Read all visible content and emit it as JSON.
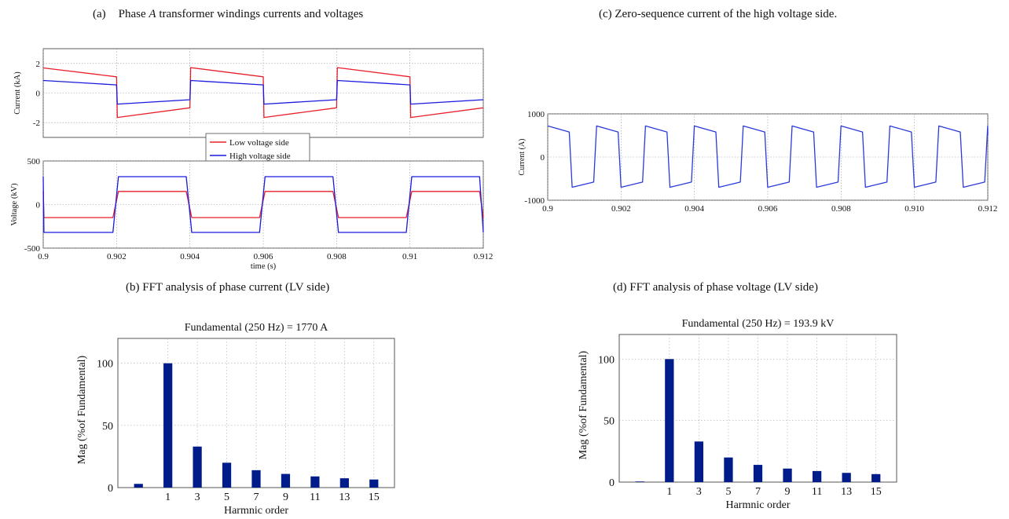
{
  "captions": {
    "a_label": "(a)",
    "a_text_pre": "Phase ",
    "a_text_italic": "A",
    "a_text_post": " transformer windings currents and voltages",
    "b": "(b) FFT analysis of phase current (LV side)",
    "c": "(c) Zero-sequence current of the high voltage side.",
    "d": "(d) FFT analysis of phase voltage (LV side)"
  },
  "colors": {
    "lv": "#e8202a",
    "hv": "#1a1adf",
    "bar": "#001b8a",
    "zero": "#2a3ad8"
  },
  "chart_data": [
    {
      "id": "a_current",
      "type": "line",
      "ylabel": "Current (kA)",
      "xlim": [
        0.9,
        0.912
      ],
      "ylim": [
        -3,
        3
      ],
      "yticks": [
        -2,
        0,
        2
      ],
      "xticks": [
        0.9,
        0.902,
        0.904,
        0.906,
        0.908,
        0.91,
        0.912
      ],
      "grid": true,
      "legend": {
        "position": "bottom-center",
        "entries": [
          "Low voltage side",
          "High voltage side"
        ]
      },
      "series": [
        {
          "name": "Low voltage side",
          "x": [
            0.9,
            0.902,
            0.90202,
            0.904,
            0.90402,
            0.906,
            0.90602,
            0.908,
            0.90802,
            0.91,
            0.91002,
            0.912
          ],
          "y": [
            1.7,
            1.1,
            -1.65,
            -1.0,
            1.72,
            1.1,
            -1.65,
            -1.0,
            1.72,
            1.1,
            -1.65,
            -1.0
          ]
        },
        {
          "name": "High voltage side",
          "x": [
            0.9,
            0.902,
            0.90202,
            0.904,
            0.90402,
            0.906,
            0.90602,
            0.908,
            0.90802,
            0.91,
            0.91002,
            0.912
          ],
          "y": [
            0.85,
            0.55,
            -0.75,
            -0.45,
            0.85,
            0.55,
            -0.75,
            -0.45,
            0.85,
            0.55,
            -0.75,
            -0.45
          ]
        }
      ]
    },
    {
      "id": "a_voltage",
      "type": "line",
      "ylabel": "Voltage (kV)",
      "xlabel": "time (s)",
      "xlim": [
        0.9,
        0.912
      ],
      "ylim": [
        -500,
        500
      ],
      "yticks": [
        -500,
        0,
        500
      ],
      "xticks": [
        0.9,
        0.902,
        0.904,
        0.906,
        0.908,
        0.91,
        0.912
      ],
      "xticklabels": [
        "0.9",
        "0.902",
        "0.904",
        "0.906",
        "0.908",
        "0.91",
        "0.912"
      ],
      "grid": true,
      "series": [
        {
          "name": "Low voltage side",
          "x": [
            0.9,
            0.90002,
            0.9019,
            0.90205,
            0.9039,
            0.90405,
            0.9059,
            0.90605,
            0.9079,
            0.90805,
            0.9099,
            0.91005,
            0.9119,
            0.912
          ],
          "y": [
            150,
            -150,
            -150,
            150,
            150,
            -150,
            -150,
            150,
            150,
            -150,
            -150,
            150,
            150,
            -150
          ]
        },
        {
          "name": "High voltage side",
          "x": [
            0.9,
            0.90002,
            0.9019,
            0.90205,
            0.9039,
            0.90405,
            0.9059,
            0.90605,
            0.9079,
            0.90805,
            0.9099,
            0.91005,
            0.9119,
            0.912
          ],
          "y": [
            320,
            -320,
            -320,
            320,
            320,
            -320,
            -320,
            320,
            320,
            -320,
            -320,
            320,
            320,
            -320
          ]
        }
      ]
    },
    {
      "id": "c_zero_seq",
      "type": "line",
      "ylabel": "Current (A)",
      "xlim": [
        0.9,
        0.912
      ],
      "ylim": [
        -1000,
        1000
      ],
      "yticks": [
        -1000,
        0,
        1000
      ],
      "xticks": [
        0.9,
        0.902,
        0.904,
        0.906,
        0.908,
        0.91,
        0.912
      ],
      "xticklabels": [
        "0.9",
        "0.902",
        "0.904",
        "0.906",
        "0.908",
        "0.910",
        "0.912"
      ],
      "grid": true,
      "period": 0.001333,
      "high_start": 720,
      "high_end": 580,
      "low_start": -700,
      "low_end": -580
    },
    {
      "id": "b_fft_current",
      "type": "bar",
      "title": "Fundamental (250 Hz) = 1770 A",
      "xlabel": "Harmnic order",
      "ylabel": "Mag (%of Fundamental)",
      "ylim": [
        0,
        120
      ],
      "yticks": [
        0,
        50,
        100
      ],
      "categories": [
        "",
        "1",
        "3",
        "5",
        "7",
        "9",
        "11",
        "13",
        "15"
      ],
      "values": [
        3,
        100,
        33,
        20,
        14,
        11,
        9,
        7.5,
        6.5
      ],
      "grid": true
    },
    {
      "id": "d_fft_voltage",
      "type": "bar",
      "title": "Fundamental (250 Hz) = 193.9 kV",
      "xlabel": "Harmnic order",
      "ylabel": "Mag (%of Fundamental)",
      "ylim": [
        0,
        120
      ],
      "yticks": [
        0,
        50,
        100
      ],
      "categories": [
        "",
        "1",
        "3",
        "5",
        "7",
        "9",
        "11",
        "13",
        "15"
      ],
      "values": [
        0.5,
        100,
        33,
        20,
        14,
        11,
        9,
        7.5,
        6.5
      ],
      "grid": true
    }
  ]
}
